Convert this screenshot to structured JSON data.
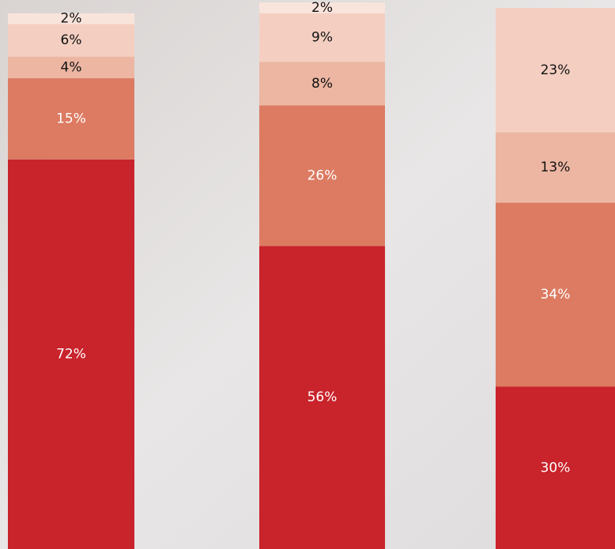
{
  "chart_data": {
    "type": "stacked-bar",
    "categories": [
      null,
      null,
      null
    ],
    "ylim": [
      0,
      100
    ],
    "series": [
      {
        "color": "#c9232b",
        "values": [
          72,
          56,
          30
        ],
        "value_labels": [
          "72%",
          "56%",
          "30%"
        ]
      },
      {
        "color": "#dc7b62",
        "values": [
          15,
          26,
          34
        ],
        "value_labels": [
          "15%",
          "26%",
          "34%"
        ]
      },
      {
        "color": "#ecb6a2",
        "values": [
          4,
          8,
          13
        ],
        "value_labels": [
          "4%",
          "8%",
          "13%"
        ]
      },
      {
        "color": "#f4cfc1",
        "values": [
          6,
          9,
          23
        ],
        "value_labels": [
          "6%",
          "9%",
          "23%"
        ]
      },
      {
        "color": "#f9e4dc",
        "values": [
          2,
          2,
          null
        ],
        "value_labels": [
          "2%",
          "2%",
          null
        ]
      }
    ]
  }
}
